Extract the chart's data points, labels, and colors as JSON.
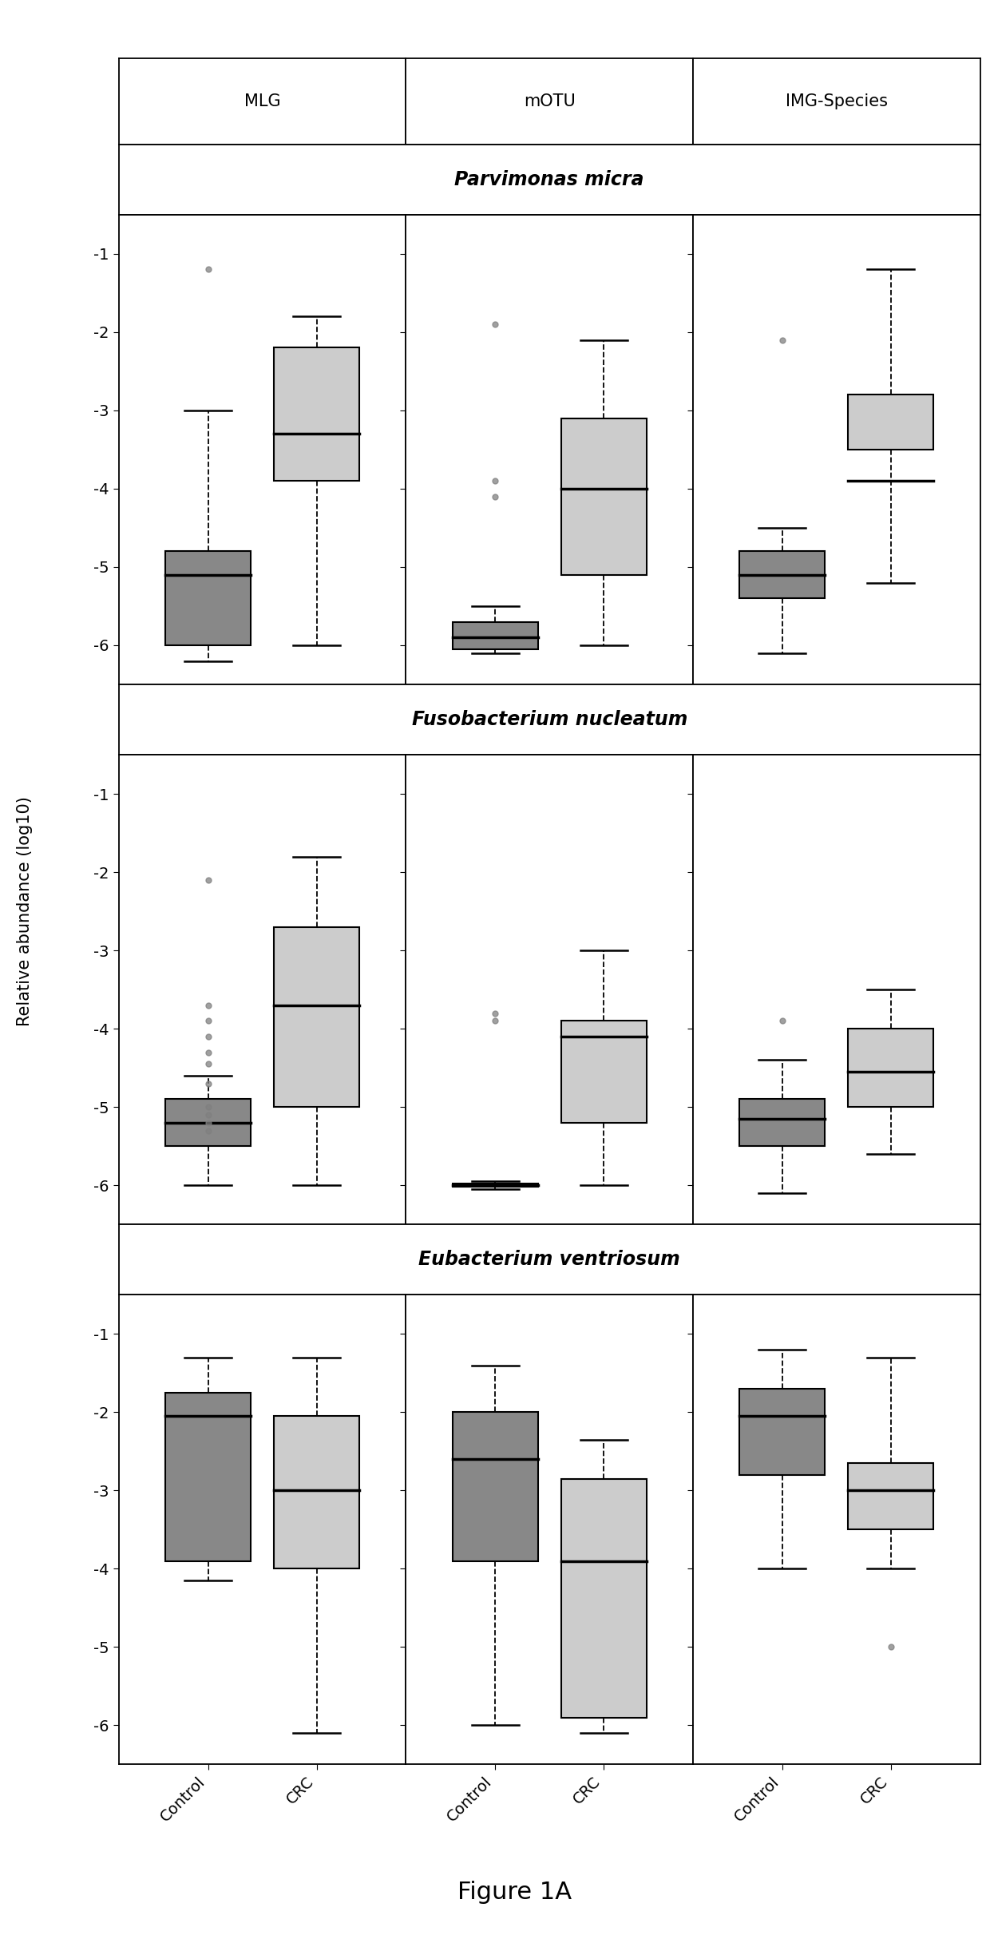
{
  "figure_title": "Figure 1A",
  "ylabel": "Relative abundance (log10)",
  "col_labels": [
    "MLG",
    "mOTU",
    "IMG-Species"
  ],
  "row_labels": [
    "Parvimonas micra",
    "Fusobacterium nucleatum",
    "Eubacterium ventriosum"
  ],
  "ylim": [
    -6.5,
    -0.5
  ],
  "yticks": [
    -6,
    -5,
    -4,
    -3,
    -2,
    -1
  ],
  "control_color": "#888888",
  "crc_color": "#cccccc",
  "background_color": "#ffffff",
  "boxes": {
    "Parvimonas micra": {
      "MLG": {
        "Control": {
          "q1": -6.0,
          "median": -5.1,
          "q3": -4.8,
          "whisker_low": -6.2,
          "whisker_high": -3.0,
          "outliers": [
            -1.2
          ]
        },
        "CRC": {
          "q1": -3.9,
          "median": -3.3,
          "q3": -2.2,
          "whisker_low": -6.0,
          "whisker_high": -1.8,
          "outliers": []
        }
      },
      "mOTU": {
        "Control": {
          "q1": -6.05,
          "median": -5.9,
          "q3": -5.7,
          "whisker_low": -6.1,
          "whisker_high": -5.5,
          "outliers": [
            -4.1,
            -3.9,
            -1.9
          ]
        },
        "CRC": {
          "q1": -5.1,
          "median": -4.0,
          "q3": -3.1,
          "whisker_low": -6.0,
          "whisker_high": -2.1,
          "outliers": []
        }
      },
      "IMG-Species": {
        "Control": {
          "q1": -5.4,
          "median": -5.1,
          "q3": -4.8,
          "whisker_low": -6.1,
          "whisker_high": -4.5,
          "outliers": [
            -2.1
          ]
        },
        "CRC": {
          "q1": -3.5,
          "median": -3.9,
          "q3": -2.8,
          "whisker_low": -5.2,
          "whisker_high": -1.2,
          "outliers": []
        }
      }
    },
    "Fusobacterium nucleatum": {
      "MLG": {
        "Control": {
          "q1": -5.5,
          "median": -5.2,
          "q3": -4.9,
          "whisker_low": -6.0,
          "whisker_high": -4.6,
          "outliers": [
            -2.1,
            -3.7,
            -3.9,
            -4.1,
            -4.3,
            -4.45,
            -4.7,
            -5.0,
            -5.1,
            -5.2,
            -5.3
          ]
        },
        "CRC": {
          "q1": -5.0,
          "median": -3.7,
          "q3": -2.7,
          "whisker_low": -6.0,
          "whisker_high": -1.8,
          "outliers": []
        }
      },
      "mOTU": {
        "Control": {
          "q1": -6.02,
          "median": -6.0,
          "q3": -5.98,
          "whisker_low": -6.05,
          "whisker_high": -5.95,
          "outliers": [
            -3.9,
            -3.8
          ]
        },
        "CRC": {
          "q1": -5.2,
          "median": -4.1,
          "q3": -3.9,
          "whisker_low": -6.0,
          "whisker_high": -3.0,
          "outliers": []
        }
      },
      "IMG-Species": {
        "Control": {
          "q1": -5.5,
          "median": -5.15,
          "q3": -4.9,
          "whisker_low": -6.1,
          "whisker_high": -4.4,
          "outliers": [
            -3.9
          ]
        },
        "CRC": {
          "q1": -5.0,
          "median": -4.55,
          "q3": -4.0,
          "whisker_low": -5.6,
          "whisker_high": -3.5,
          "outliers": []
        }
      }
    },
    "Eubacterium ventriosum": {
      "MLG": {
        "Control": {
          "q1": -3.9,
          "median": -2.05,
          "q3": -1.75,
          "whisker_low": -4.15,
          "whisker_high": -1.3,
          "outliers": []
        },
        "CRC": {
          "q1": -4.0,
          "median": -3.0,
          "q3": -2.05,
          "whisker_low": -6.1,
          "whisker_high": -1.3,
          "outliers": []
        }
      },
      "mOTU": {
        "Control": {
          "q1": -3.9,
          "median": -2.6,
          "q3": -2.0,
          "whisker_low": -6.0,
          "whisker_high": -1.4,
          "outliers": []
        },
        "CRC": {
          "q1": -5.9,
          "median": -3.9,
          "q3": -2.85,
          "whisker_low": -6.1,
          "whisker_high": -2.35,
          "outliers": []
        }
      },
      "IMG-Species": {
        "Control": {
          "q1": -2.8,
          "median": -2.05,
          "q3": -1.7,
          "whisker_low": -4.0,
          "whisker_high": -1.2,
          "outliers": []
        },
        "CRC": {
          "q1": -3.5,
          "median": -3.0,
          "q3": -2.65,
          "whisker_low": -4.0,
          "whisker_high": -1.3,
          "outliers": [
            -5.0
          ]
        }
      }
    }
  }
}
